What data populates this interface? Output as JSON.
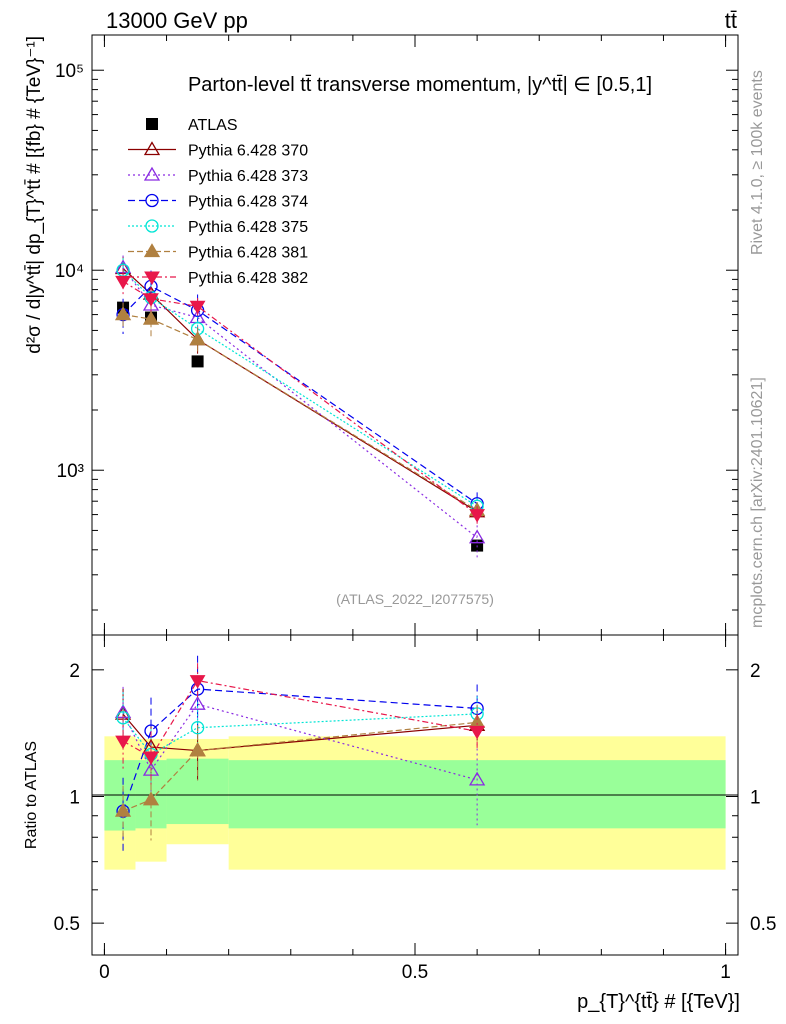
{
  "header": {
    "left": "13000 GeV pp",
    "right": "tt̄"
  },
  "side_labels": {
    "rivet": "Rivet 4.1.0, ≥ 100k events",
    "mcplots": "mcplots.cern.ch [arXiv:2401.10621]"
  },
  "chart_data": {
    "type": "line",
    "title": "Parton-level tt̄ transverse momentum, |y^tt̄| ∈ [0.5,1]",
    "analysis_label": "(ATLAS_2022_I2077575)",
    "xlabel": "p_{T}^{tt̄} # [{TeV}]",
    "ylabel": "d²σ / d|y^tt̄| dp_{T}^tt̄ # [{fb} # {TeV}⁻¹]",
    "ratio_ylabel": "Ratio to ATLAS",
    "xlim": [
      -0.02,
      1.02
    ],
    "ylim": [
      150,
      150000
    ],
    "ratio_ylim": [
      0.42,
      2.42
    ],
    "x_ticks": [
      0,
      0.5,
      1
    ],
    "x_tick_labels": [
      "0",
      "0.5",
      "1"
    ],
    "y_ticks": [
      1000,
      10000,
      100000
    ],
    "y_tick_labels": [
      "10³",
      "10⁴",
      "10⁵"
    ],
    "ratio_ticks": [
      0.5,
      1,
      2
    ],
    "ratio_tick_labels": [
      "0.5",
      "1",
      "2"
    ],
    "x": [
      0.03,
      0.075,
      0.15,
      0.6
    ],
    "bin_edges": [
      0,
      0.05,
      0.1,
      0.2,
      1.0
    ],
    "band_green": [
      [
        0.83,
        1.22
      ],
      [
        0.84,
        1.22
      ],
      [
        0.86,
        1.23
      ],
      [
        0.84,
        1.22
      ]
    ],
    "band_yellow": [
      [
        0.67,
        1.39
      ],
      [
        0.7,
        1.37
      ],
      [
        0.77,
        1.37
      ],
      [
        0.67,
        1.39
      ]
    ],
    "series": [
      {
        "name": "ATLAS",
        "color": "#000000",
        "marker": "square",
        "dash": "none",
        "values": [
          6500,
          5800,
          3500,
          420
        ],
        "errors": [
          0.05,
          0.05,
          0.05,
          0.05
        ],
        "is_data": true
      },
      {
        "name": "Pythia 6.428 370",
        "color": "#8b0000",
        "marker": "triangle-open",
        "dash": "none",
        "values": [
          10200,
          7600,
          4500,
          620
        ],
        "errors": [
          0.15,
          0.15,
          0.15,
          0.08
        ]
      },
      {
        "name": "Pythia 6.428 373",
        "color": "#8a2be2",
        "marker": "triangle-open",
        "dash": "2,3",
        "values": [
          10300,
          6700,
          5800,
          460
        ],
        "errors": [
          0.15,
          0.15,
          0.15,
          0.22
        ]
      },
      {
        "name": "Pythia 6.428 374",
        "color": "#0000ee",
        "marker": "circle-open",
        "dash": "7,4",
        "values": [
          6000,
          8300,
          6300,
          680
        ],
        "errors": [
          0.2,
          0.2,
          0.2,
          0.14
        ]
      },
      {
        "name": "Pythia 6.428 375",
        "color": "#00e5d5",
        "marker": "circle-open",
        "dash": "2,2",
        "values": [
          10000,
          7300,
          5100,
          660
        ],
        "errors": [
          0.15,
          0.15,
          0.15,
          0.1
        ]
      },
      {
        "name": "Pythia 6.428 381",
        "color": "#b08040",
        "marker": "triangle-filled",
        "dash": "6,3",
        "values": [
          6000,
          5700,
          4500,
          630
        ],
        "errors": [
          0.15,
          0.2,
          0.15,
          0.1
        ]
      },
      {
        "name": "Pythia 6.428 382",
        "color": "#e8174a",
        "marker": "triangle-down-filled",
        "dash": "6,3,2,3",
        "values": [
          8800,
          7200,
          6600,
          600
        ],
        "errors": [
          0.15,
          0.15,
          0.1,
          0.1
        ]
      }
    ]
  }
}
